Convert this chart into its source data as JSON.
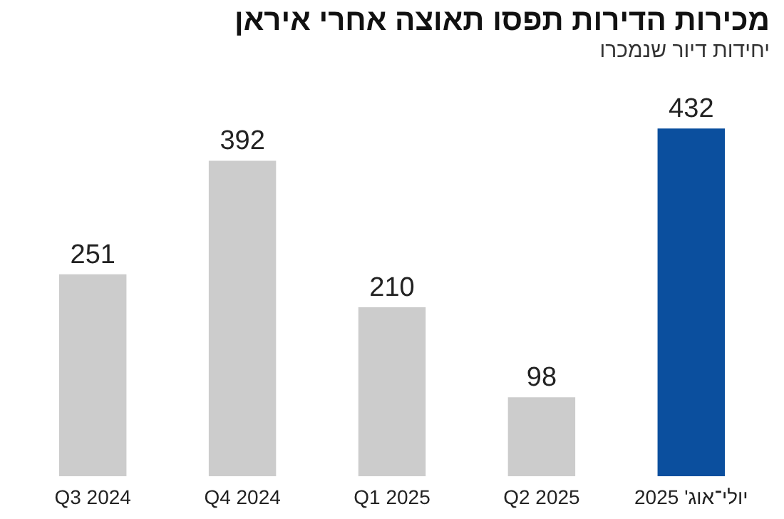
{
  "chart_data": {
    "type": "bar",
    "title": "מכירות הדירות תפסו תאוצה אחרי איראן",
    "subtitle": "יחידות דיור שנמכרו",
    "categories": [
      "Q3 2024",
      "Q4 2024",
      "Q1 2025",
      "Q2 2025",
      "יולי־אוג' 2025"
    ],
    "values": [
      251,
      392,
      210,
      98,
      432
    ],
    "colors": [
      "#cccccc",
      "#cccccc",
      "#cccccc",
      "#cccccc",
      "#0b4f9e"
    ],
    "data_labels": true
  }
}
